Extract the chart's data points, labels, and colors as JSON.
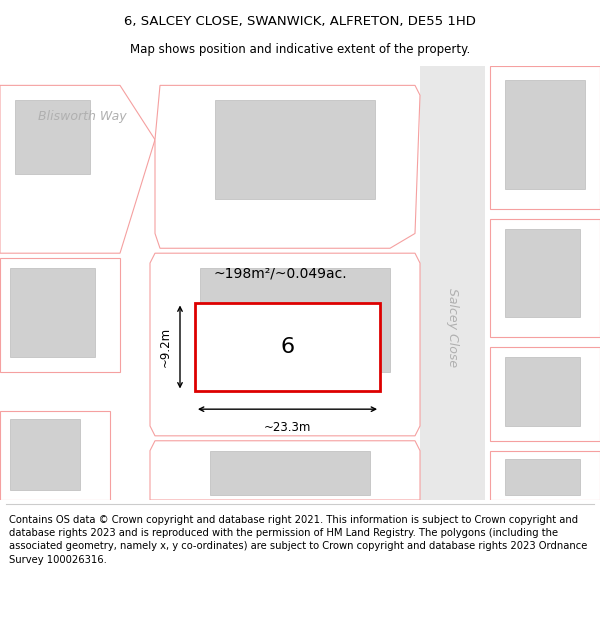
{
  "title": "6, SALCEY CLOSE, SWANWICK, ALFRETON, DE55 1HD",
  "subtitle": "Map shows position and indicative extent of the property.",
  "footer": "Contains OS data © Crown copyright and database right 2021. This information is subject to Crown copyright and database rights 2023 and is reproduced with the permission of HM Land Registry. The polygons (including the associated geometry, namely x, y co-ordinates) are subject to Crown copyright and database rights 2023 Ordnance Survey 100026316.",
  "plot_outline_color": "#f5a0a0",
  "highlight_color": "#dd0000",
  "building_fill": "#d0d0d0",
  "building_edge": "#bbbbbb",
  "parcel_fill": "#ffffff",
  "road_fill": "#e8e8e8",
  "area_text": "~198m²/~0.049ac.",
  "number_text": "6",
  "dim_width": "~23.3m",
  "dim_height": "~9.2m",
  "salcey_close_label": "Salcey Close",
  "blisworth_way_label": "Blisworth Way",
  "title_fontsize": 9.5,
  "subtitle_fontsize": 8.5,
  "footer_fontsize": 7.2,
  "map_label_fontsize": 8,
  "area_fontsize": 10,
  "number_fontsize": 16,
  "dim_fontsize": 8.5
}
